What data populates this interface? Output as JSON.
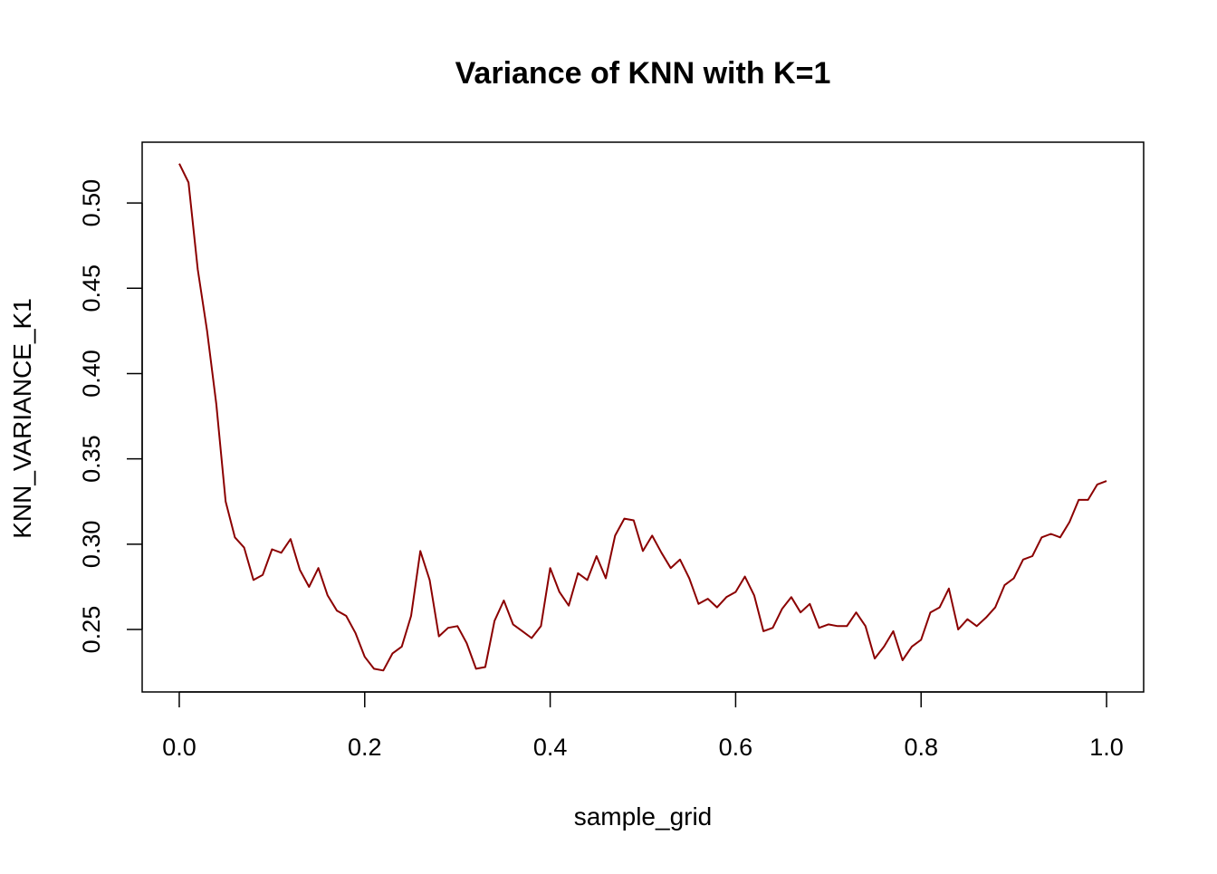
{
  "chart_data": {
    "type": "line",
    "title": "Variance of KNN with K=1",
    "xlabel": "sample_grid",
    "ylabel": "KNN_VARIANCE_K1",
    "xlim": [
      -0.04,
      1.04
    ],
    "ylim": [
      0.2134,
      0.5356
    ],
    "xticks": [
      0.0,
      0.2,
      0.4,
      0.6,
      0.8,
      1.0
    ],
    "xtick_labels": [
      "0.0",
      "0.2",
      "0.4",
      "0.6",
      "0.8",
      "1.0"
    ],
    "yticks": [
      0.25,
      0.3,
      0.35,
      0.4,
      0.45,
      0.5
    ],
    "ytick_labels": [
      "0.25",
      "0.30",
      "0.35",
      "0.40",
      "0.45",
      "0.50"
    ],
    "grid": false,
    "line_color": "#8B0000",
    "x_start": 0.0,
    "x_step": 0.01,
    "values": [
      0.523,
      0.512,
      0.461,
      0.425,
      0.382,
      0.325,
      0.304,
      0.298,
      0.279,
      0.282,
      0.297,
      0.295,
      0.303,
      0.285,
      0.275,
      0.286,
      0.27,
      0.261,
      0.258,
      0.248,
      0.234,
      0.227,
      0.226,
      0.236,
      0.24,
      0.258,
      0.296,
      0.279,
      0.246,
      0.251,
      0.252,
      0.242,
      0.227,
      0.228,
      0.255,
      0.267,
      0.253,
      0.249,
      0.245,
      0.252,
      0.286,
      0.272,
      0.264,
      0.283,
      0.279,
      0.293,
      0.28,
      0.305,
      0.315,
      0.314,
      0.296,
      0.305,
      0.295,
      0.286,
      0.291,
      0.28,
      0.265,
      0.268,
      0.263,
      0.269,
      0.272,
      0.281,
      0.27,
      0.249,
      0.251,
      0.262,
      0.269,
      0.26,
      0.265,
      0.251,
      0.253,
      0.252,
      0.252,
      0.26,
      0.252,
      0.233,
      0.24,
      0.249,
      0.232,
      0.24,
      0.244,
      0.26,
      0.263,
      0.274,
      0.25,
      0.256,
      0.252,
      0.257,
      0.263,
      0.276,
      0.28,
      0.291,
      0.293,
      0.304,
      0.306,
      0.304,
      0.313,
      0.326,
      0.326,
      0.335,
      0.337
    ]
  }
}
